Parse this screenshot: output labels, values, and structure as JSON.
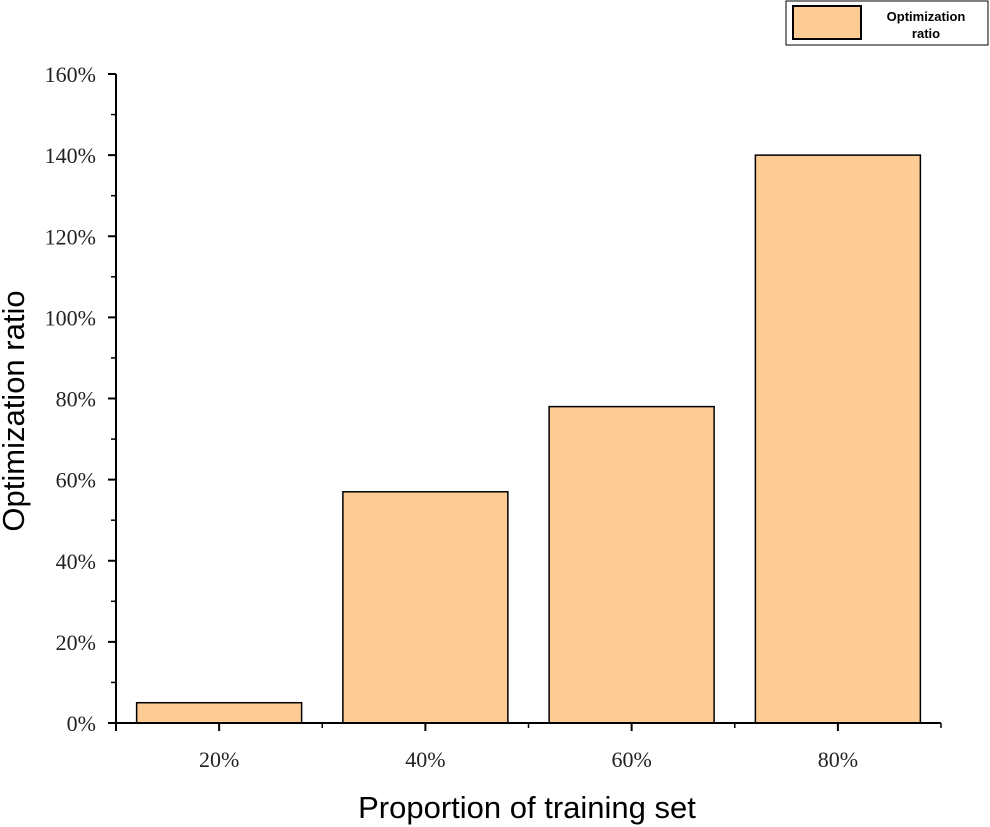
{
  "chart_data": {
    "type": "bar",
    "categories": [
      "20%",
      "40%",
      "60%",
      "80%"
    ],
    "series": [
      {
        "name": "Optimization ratio",
        "values": [
          5,
          57,
          78,
          140
        ]
      }
    ],
    "value_unit": "%",
    "xlabel": "Proportion of training set",
    "ylabel": "Optimization ratio",
    "ylim": [
      0,
      160
    ],
    "y_ticks": [
      "0%",
      "20%",
      "40%",
      "60%",
      "80%",
      "100%",
      "120%",
      "140%",
      "160%"
    ],
    "grid": false,
    "legend": {
      "position": "top-right",
      "lines": [
        "Optimization",
        "ratio"
      ]
    },
    "colors": {
      "bar_fill": "#FDCC94",
      "bar_stroke": "#000000",
      "axis": "#000000"
    }
  }
}
